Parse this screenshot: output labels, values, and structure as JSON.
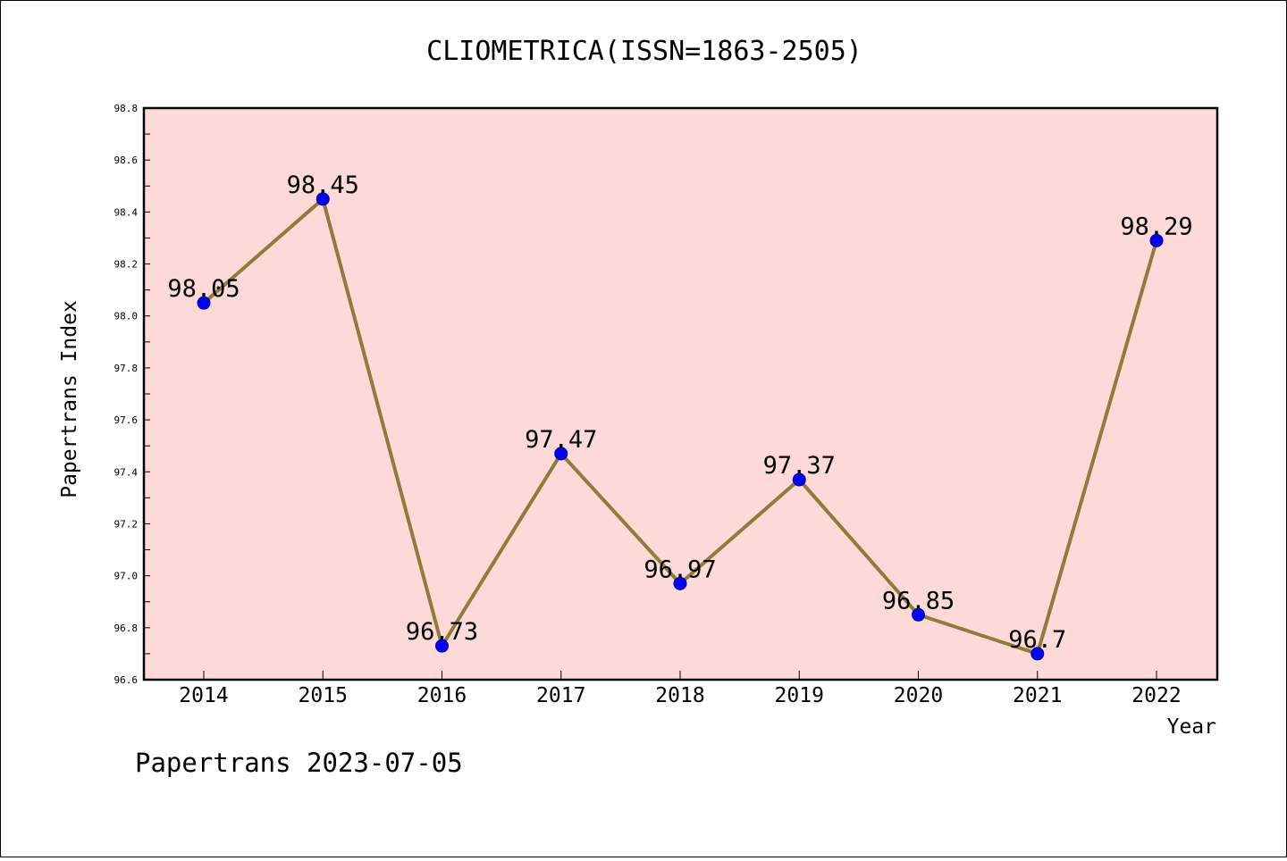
{
  "chart_data": {
    "type": "line",
    "title": "CLIOMETRICA(ISSN=1863-2505)",
    "xlabel": "Year",
    "ylabel": "Papertrans Index",
    "categories": [
      "2014",
      "2015",
      "2016",
      "2017",
      "2018",
      "2019",
      "2020",
      "2021",
      "2022"
    ],
    "series": [
      {
        "values": [
          98.05,
          98.45,
          96.73,
          97.47,
          96.97,
          97.37,
          96.85,
          96.7,
          98.29
        ]
      }
    ],
    "data_labels": [
      "98.05",
      "98.45",
      "96.73",
      "97.47",
      "96.97",
      "97.37",
      "96.85",
      "96.7",
      "98.29"
    ],
    "ylim": [
      96.6,
      98.8
    ],
    "yticks": [
      "96.6",
      "96.8",
      "97.0",
      "97.2",
      "97.4",
      "97.6",
      "97.8",
      "98.0",
      "98.2",
      "98.4",
      "98.6",
      "98.8"
    ],
    "grid": false,
    "legend": "none",
    "colors": {
      "plot_background": "#fddad7",
      "line": "#8f7c3a",
      "marker": "#0000ff"
    }
  },
  "footer": "Papertrans 2023-07-05"
}
